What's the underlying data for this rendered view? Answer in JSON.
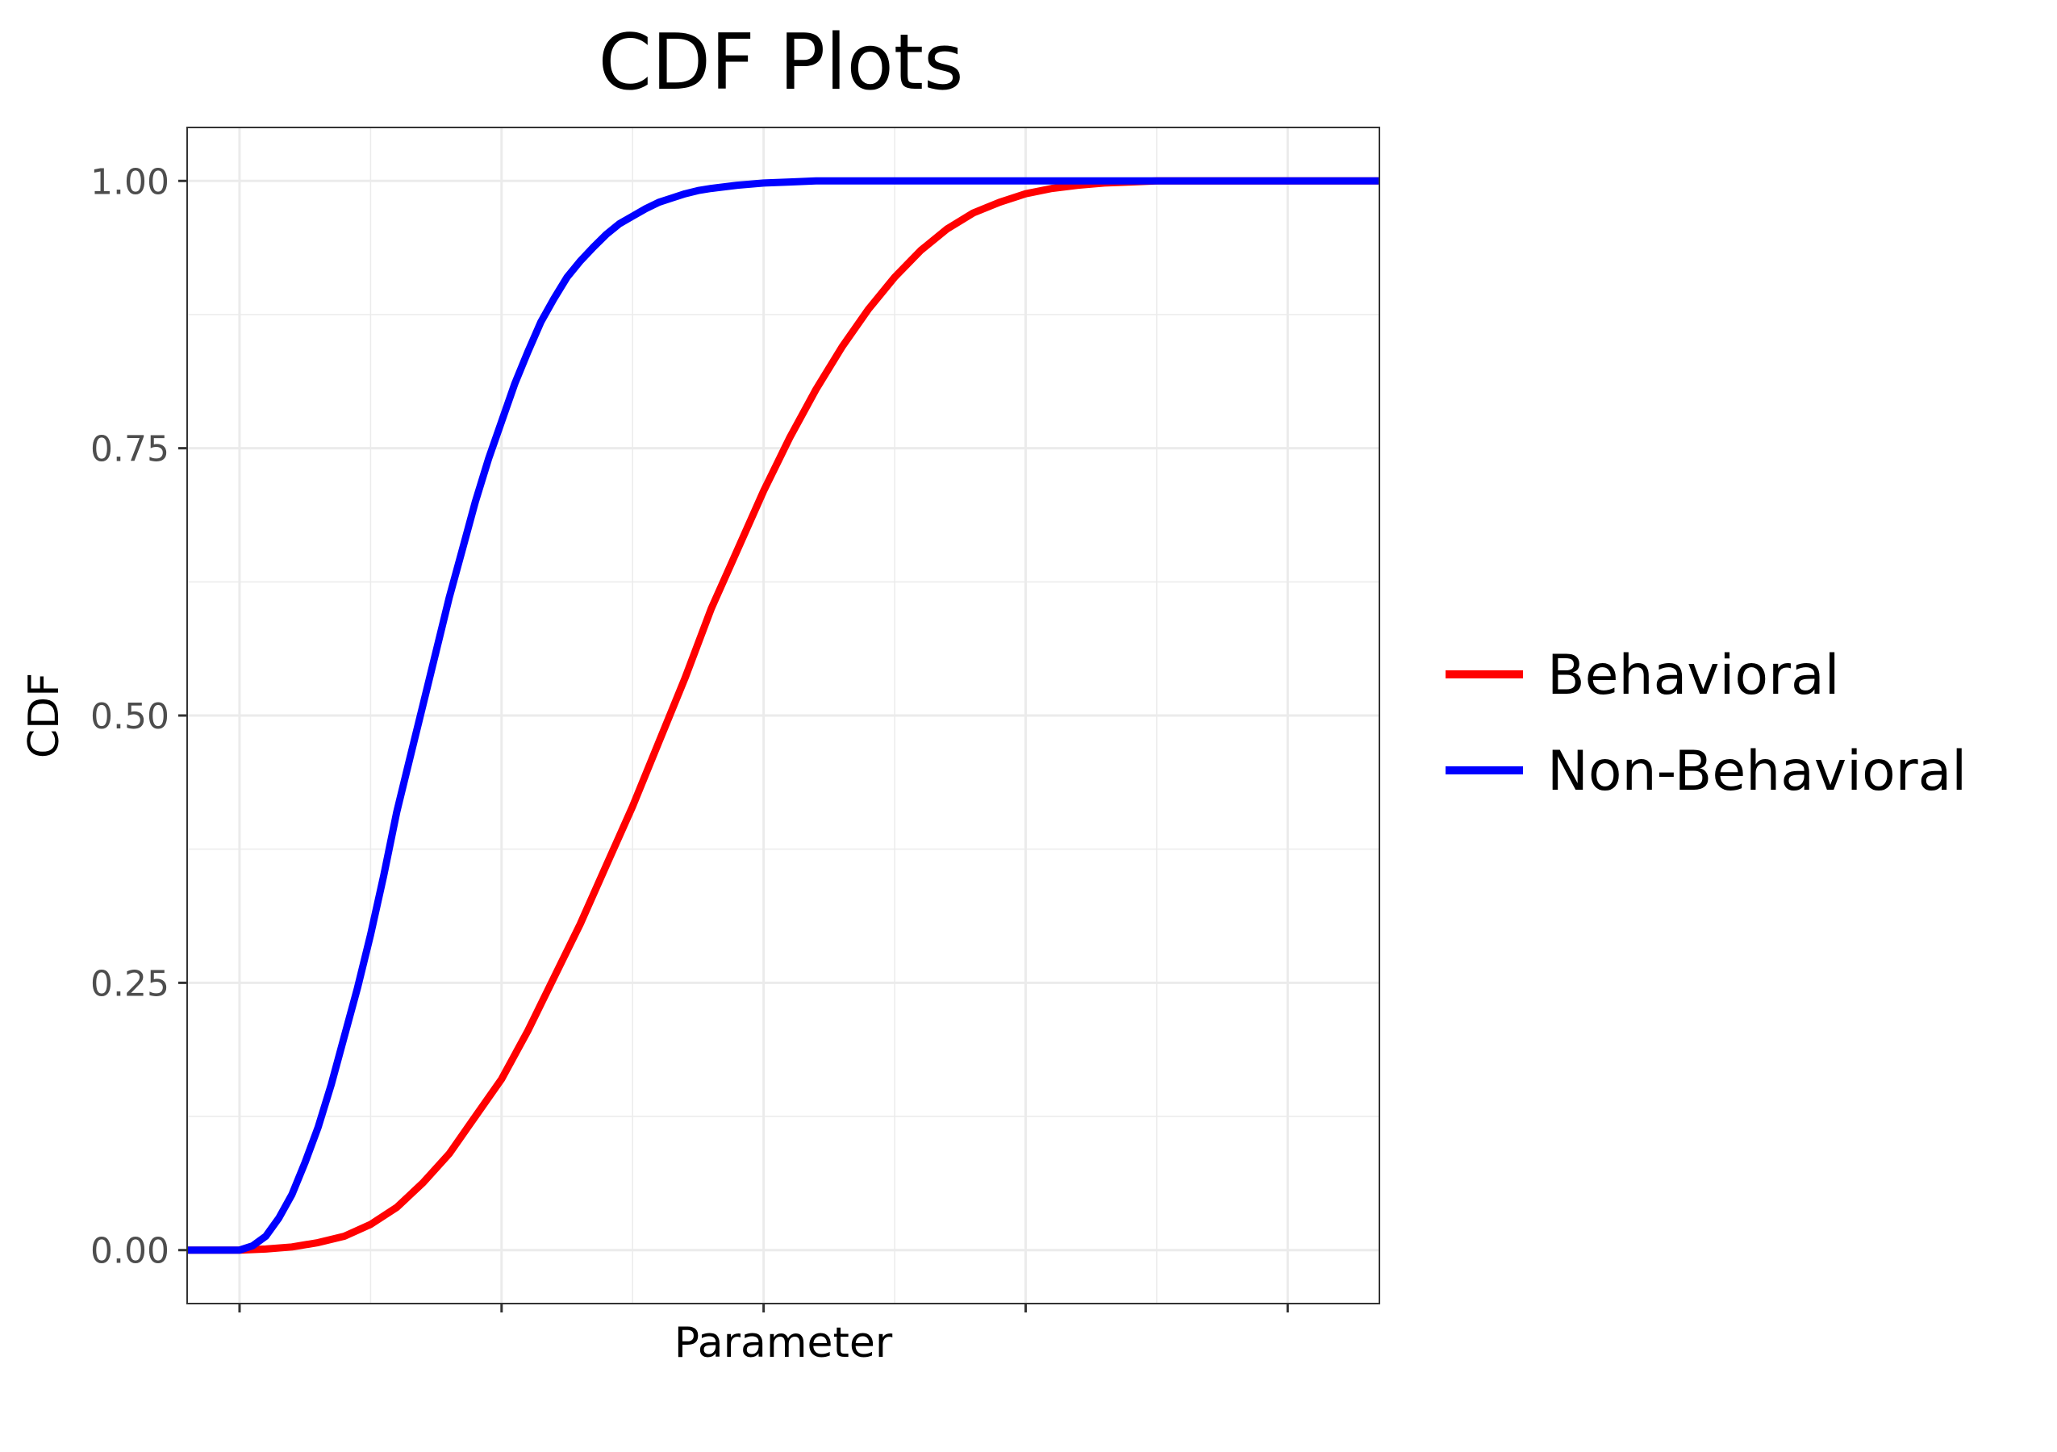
{
  "chart_data": {
    "type": "line",
    "title": "CDF Plots",
    "xlabel": "Parameter",
    "ylabel": "CDF",
    "xlim": [
      -0.2,
      4.35
    ],
    "ylim": [
      -0.05,
      1.05
    ],
    "x_major_ticks": [
      0,
      1,
      2,
      3,
      4
    ],
    "x_tick_labels": [],
    "yticks": [
      0,
      0.25,
      0.5,
      0.75,
      1
    ],
    "ytick_labels": [
      "0.00",
      "0.25",
      "0.50",
      "0.75",
      "1.00"
    ],
    "grid": true,
    "legend_position": "right",
    "series": [
      {
        "name": "Behavioral",
        "color": "#ff0000",
        "x": [
          -0.2,
          0,
          0.1,
          0.2,
          0.3,
          0.4,
          0.5,
          0.6,
          0.7,
          0.8,
          0.9,
          1.0,
          1.1,
          1.2,
          1.3,
          1.4,
          1.5,
          1.6,
          1.7,
          1.8,
          1.9,
          2.0,
          2.1,
          2.2,
          2.3,
          2.4,
          2.5,
          2.6,
          2.7,
          2.8,
          2.9,
          3.0,
          3.1,
          3.2,
          3.3,
          3.4,
          3.5,
          3.6,
          3.7,
          3.8,
          3.9,
          4.0,
          4.1,
          4.2,
          4.35
        ],
        "values": [
          0,
          0,
          0.001,
          0.003,
          0.007,
          0.013,
          0.024,
          0.04,
          0.063,
          0.09,
          0.125,
          0.16,
          0.205,
          0.255,
          0.305,
          0.36,
          0.415,
          0.475,
          0.535,
          0.6,
          0.655,
          0.71,
          0.76,
          0.805,
          0.845,
          0.88,
          0.91,
          0.935,
          0.955,
          0.97,
          0.98,
          0.988,
          0.993,
          0.996,
          0.998,
          0.999,
          1,
          1,
          1,
          1,
          1,
          1,
          1,
          1,
          1
        ]
      },
      {
        "name": "Non-Behavioral",
        "color": "#0000ff",
        "x": [
          -0.2,
          0,
          0.05,
          0.1,
          0.15,
          0.2,
          0.25,
          0.3,
          0.35,
          0.4,
          0.45,
          0.5,
          0.55,
          0.6,
          0.65,
          0.7,
          0.75,
          0.8,
          0.85,
          0.9,
          0.95,
          1.0,
          1.05,
          1.1,
          1.15,
          1.2,
          1.25,
          1.3,
          1.35,
          1.4,
          1.45,
          1.5,
          1.55,
          1.6,
          1.65,
          1.7,
          1.75,
          1.8,
          1.9,
          2.0,
          2.1,
          2.2,
          2.3,
          2.4,
          2.5,
          2.7,
          3.0,
          3.3,
          3.6,
          4.0,
          4.35
        ],
        "values": [
          0,
          0,
          0.004,
          0.013,
          0.03,
          0.052,
          0.082,
          0.115,
          0.155,
          0.2,
          0.245,
          0.295,
          0.35,
          0.41,
          0.46,
          0.51,
          0.56,
          0.61,
          0.655,
          0.7,
          0.74,
          0.775,
          0.81,
          0.84,
          0.868,
          0.89,
          0.91,
          0.925,
          0.938,
          0.95,
          0.96,
          0.967,
          0.974,
          0.98,
          0.984,
          0.988,
          0.991,
          0.993,
          0.996,
          0.998,
          0.999,
          1,
          1,
          1,
          1,
          1,
          1,
          1,
          1,
          1,
          1
        ]
      }
    ]
  }
}
